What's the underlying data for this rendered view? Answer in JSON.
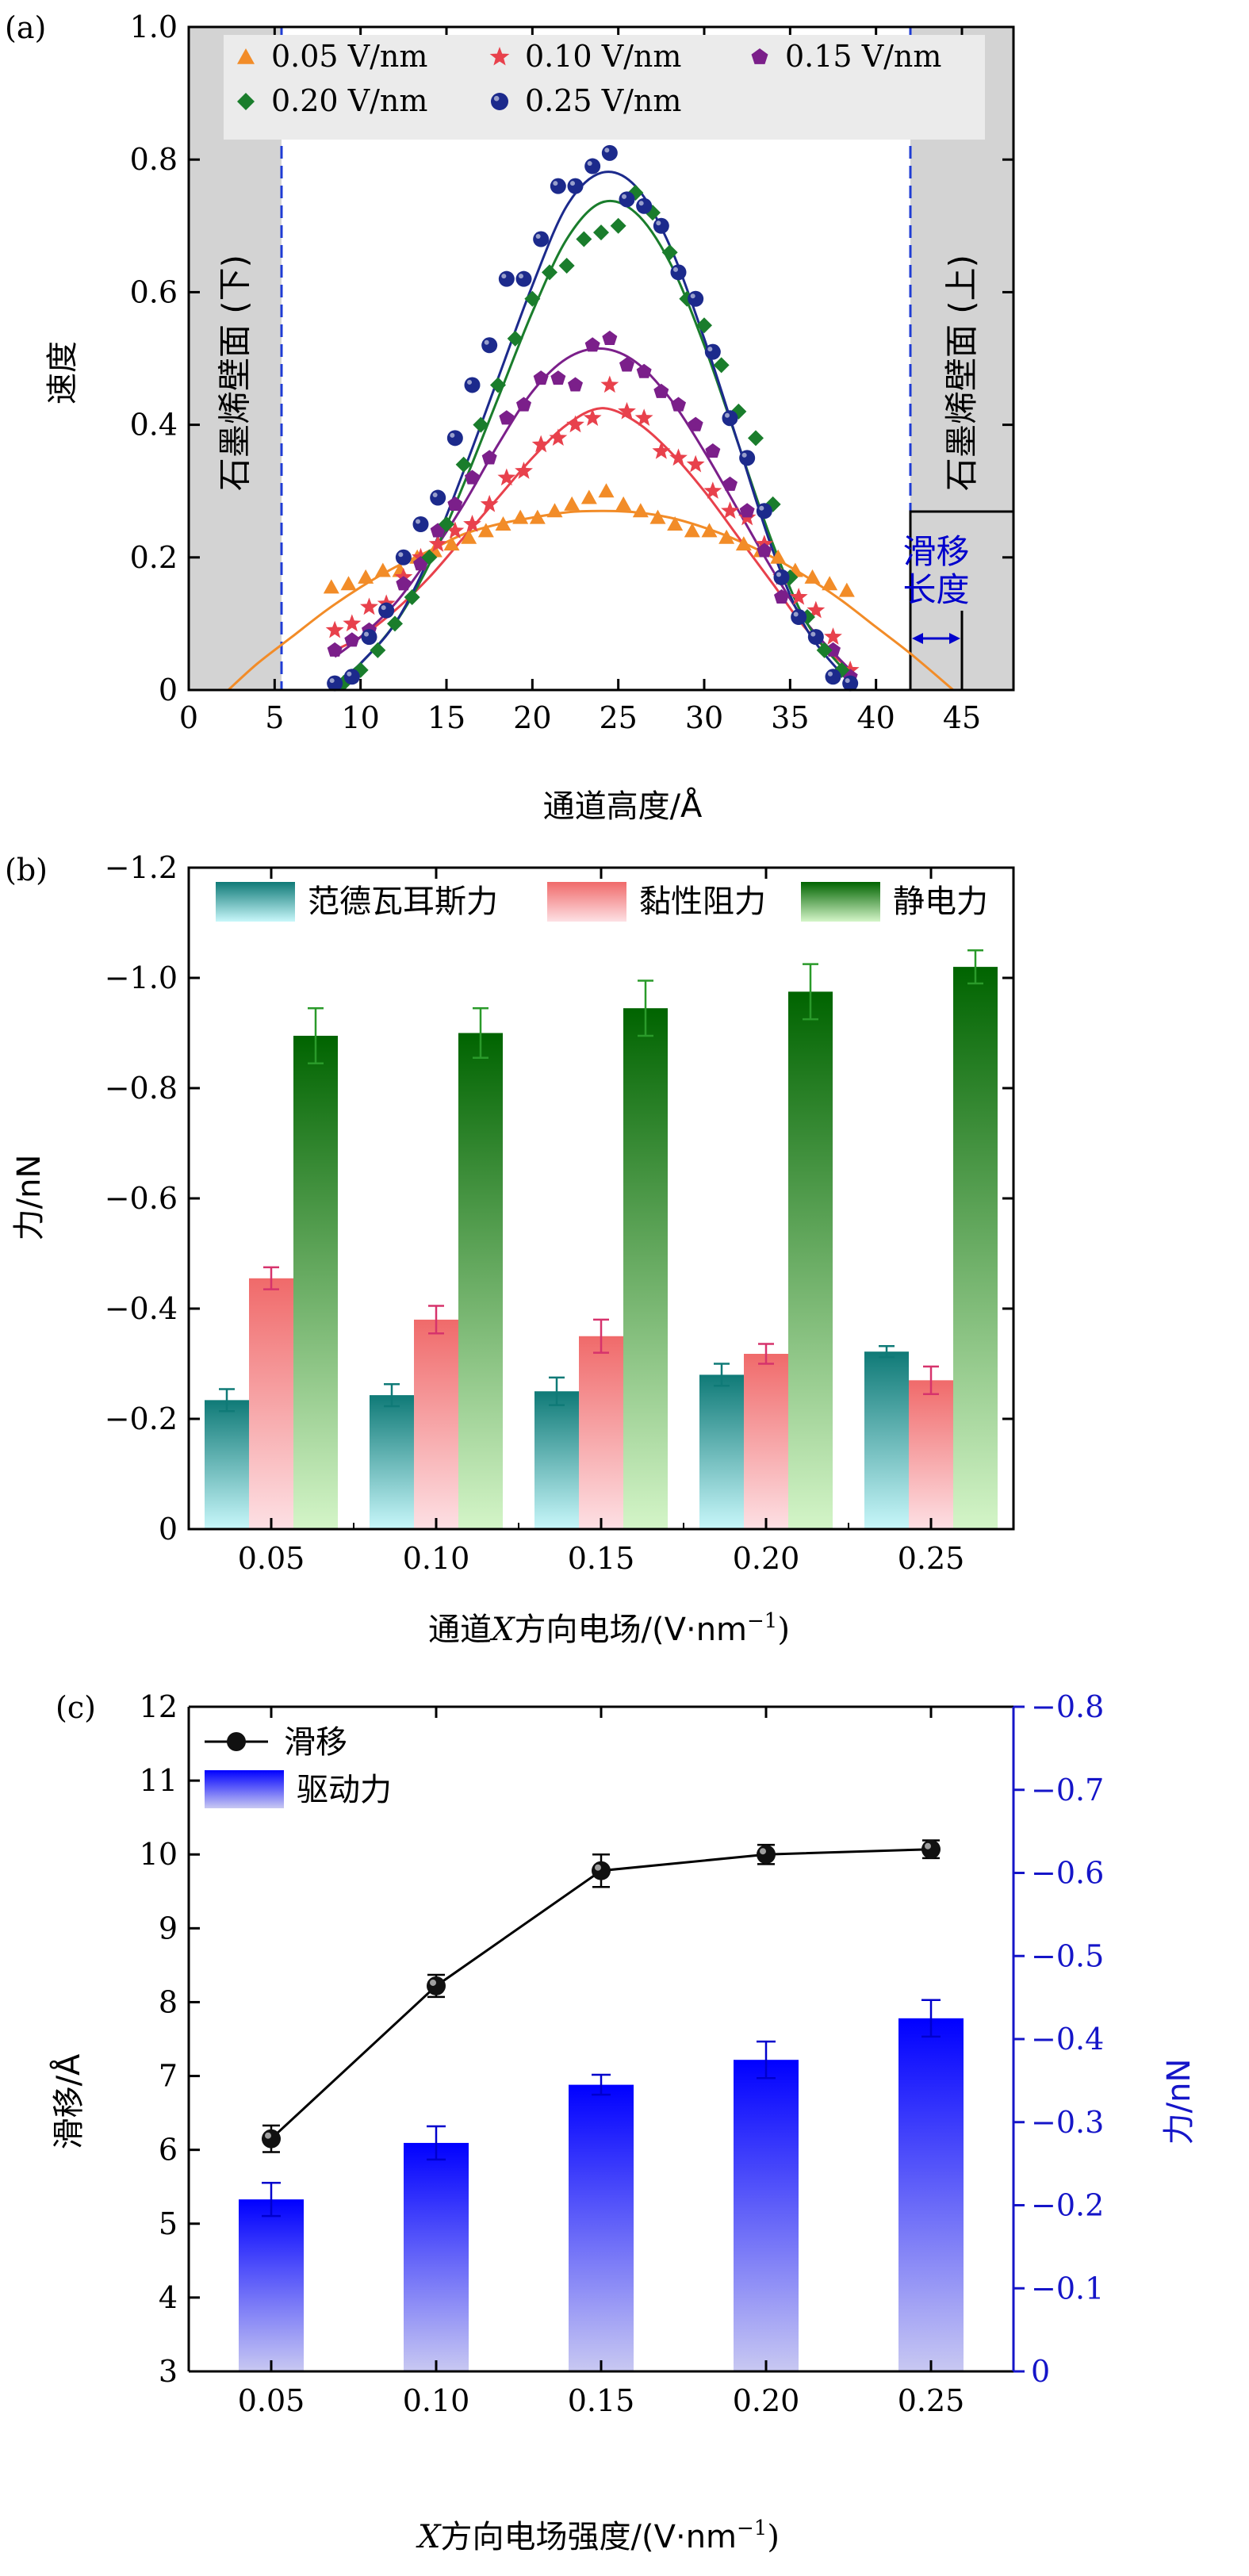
{
  "panels": [
    {
      "id": "a",
      "label": "(a)",
      "chart_data": {
        "type": "scatter",
        "xlabel": "通道高度/Å",
        "ylabel": "速度",
        "xlim": [
          0,
          48
        ],
        "ylim": [
          0,
          1.0
        ],
        "xticks": [
          0,
          5,
          10,
          15,
          20,
          25,
          30,
          35,
          40,
          45
        ],
        "yticks": [
          0,
          0.2,
          0.4,
          0.6,
          0.8,
          1.0
        ],
        "ytick_labels": [
          "0",
          "0.2",
          "0.4",
          "0.6",
          "0.8",
          "1.0"
        ],
        "legend_position": "top",
        "wall_lower": {
          "label": "石墨烯壁面 (下)",
          "x_range": [
            0,
            5.4
          ],
          "color": "#d3d3d3"
        },
        "wall_upper": {
          "label": "石墨烯壁面 (上)",
          "x_range": [
            42,
            48
          ],
          "color": "#d3d3d3"
        },
        "slip_annotation": {
          "label_line1": "滑移",
          "label_line2": "长度",
          "x_range": [
            42,
            45
          ],
          "color": "#0000cc"
        },
        "series": [
          {
            "name": "0.05 V/nm",
            "marker": "triangle",
            "color": "#f28c28",
            "x": [
              8.3,
              9.3,
              10.3,
              11.3,
              12.3,
              13.3,
              14.3,
              15.3,
              16.3,
              17.3,
              18.3,
              19.3,
              20.3,
              21.3,
              22.3,
              23.3,
              24.3,
              25.3,
              26.3,
              27.3,
              28.3,
              29.3,
              30.3,
              31.3,
              32.3,
              33.3,
              34.3,
              35.3,
              36.3,
              37.3,
              38.3
            ],
            "y": [
              0.155,
              0.16,
              0.17,
              0.18,
              0.18,
              0.2,
              0.21,
              0.22,
              0.23,
              0.24,
              0.25,
              0.26,
              0.26,
              0.27,
              0.28,
              0.29,
              0.3,
              0.28,
              0.27,
              0.26,
              0.25,
              0.24,
              0.24,
              0.23,
              0.22,
              0.21,
              0.2,
              0.18,
              0.17,
              0.16,
              0.15
            ],
            "fit_x": [
              2.3,
              4,
              6,
              8,
              10,
              12,
              14,
              16,
              18,
              20,
              22,
              24,
              26,
              28,
              30,
              32,
              34,
              36,
              38,
              40,
              42,
              44.5
            ],
            "fit_y": [
              0.0,
              0.04,
              0.08,
              0.12,
              0.155,
              0.185,
              0.21,
              0.235,
              0.25,
              0.26,
              0.268,
              0.27,
              0.268,
              0.26,
              0.245,
              0.225,
              0.2,
              0.17,
              0.135,
              0.095,
              0.055,
              0.0
            ]
          },
          {
            "name": "0.10 V/nm",
            "marker": "star",
            "color": "#e8414c",
            "x": [
              8.5,
              9.5,
              10.5,
              11.5,
              12.5,
              13.5,
              14.5,
              15.5,
              16.5,
              17.5,
              18.5,
              19.5,
              20.5,
              21.5,
              22.5,
              23.5,
              24.5,
              25.5,
              26.5,
              27.5,
              28.5,
              29.5,
              30.5,
              31.5,
              32.5,
              33.5,
              34.5,
              35.5,
              36.5,
              37.5,
              38.5
            ],
            "y": [
              0.09,
              0.1,
              0.125,
              0.13,
              0.17,
              0.2,
              0.22,
              0.24,
              0.25,
              0.28,
              0.32,
              0.33,
              0.37,
              0.38,
              0.4,
              0.41,
              0.46,
              0.42,
              0.41,
              0.36,
              0.35,
              0.34,
              0.3,
              0.27,
              0.26,
              0.22,
              0.17,
              0.14,
              0.12,
              0.08,
              0.03
            ],
            "fit_x": [
              8.5,
              10,
              12,
              14,
              16,
              18,
              20,
              22,
              24,
              26,
              28,
              30,
              32,
              34,
              36,
              38.5
            ],
            "fit_y": [
              0.06,
              0.08,
              0.12,
              0.17,
              0.23,
              0.29,
              0.35,
              0.4,
              0.425,
              0.405,
              0.36,
              0.3,
              0.23,
              0.16,
              0.09,
              0.03
            ]
          },
          {
            "name": "0.15 V/nm",
            "marker": "pentagon",
            "color": "#7b1f8a",
            "x": [
              8.5,
              9.5,
              10.5,
              11.5,
              12.5,
              13.5,
              14.5,
              15.5,
              16.5,
              17.5,
              18.5,
              19.5,
              20.5,
              21.5,
              22.5,
              23.5,
              24.5,
              25.5,
              26.5,
              27.5,
              28.5,
              29.5,
              30.5,
              31.5,
              32.5,
              33.5,
              34.5,
              35.5,
              36.5,
              37.5,
              38.5
            ],
            "y": [
              0.06,
              0.075,
              0.09,
              0.12,
              0.16,
              0.19,
              0.24,
              0.28,
              0.32,
              0.35,
              0.41,
              0.43,
              0.47,
              0.47,
              0.46,
              0.52,
              0.53,
              0.49,
              0.48,
              0.45,
              0.43,
              0.4,
              0.36,
              0.31,
              0.27,
              0.21,
              0.14,
              0.11,
              0.08,
              0.06,
              0.02
            ],
            "fit_x": [
              8.5,
              10,
              12,
              14,
              16,
              18,
              20,
              22,
              24,
              26,
              28,
              30,
              32,
              34,
              36,
              38.5
            ],
            "fit_y": [
              0.05,
              0.08,
              0.13,
              0.2,
              0.28,
              0.37,
              0.45,
              0.5,
              0.515,
              0.495,
              0.44,
              0.36,
              0.27,
              0.18,
              0.1,
              0.03
            ]
          },
          {
            "name": "0.20 V/nm",
            "marker": "diamond",
            "color": "#1a7d2c",
            "x": [
              9.0,
              10.0,
              11.0,
              12.0,
              13.0,
              14.0,
              15.0,
              16.0,
              17.0,
              18.0,
              19.0,
              20.0,
              21.0,
              22.0,
              23.0,
              24.0,
              25.0,
              26.0,
              27.0,
              28.0,
              29.0,
              30.0,
              31.0,
              32.0,
              33.0,
              34.0,
              35.0,
              36.0,
              37.0,
              38.0
            ],
            "y": [
              0.01,
              0.03,
              0.06,
              0.1,
              0.14,
              0.2,
              0.25,
              0.34,
              0.4,
              0.46,
              0.53,
              0.59,
              0.63,
              0.64,
              0.68,
              0.69,
              0.7,
              0.75,
              0.72,
              0.66,
              0.59,
              0.55,
              0.49,
              0.42,
              0.38,
              0.28,
              0.17,
              0.11,
              0.06,
              0.03
            ],
            "fit_x": [
              9,
              10,
              12,
              14,
              16,
              18,
              20,
              22,
              24,
              26,
              28,
              30,
              32,
              34,
              36,
              38.5
            ],
            "fit_y": [
              0.02,
              0.04,
              0.1,
              0.19,
              0.31,
              0.44,
              0.57,
              0.68,
              0.735,
              0.72,
              0.645,
              0.52,
              0.37,
              0.22,
              0.1,
              0.02
            ]
          },
          {
            "name": "0.25 V/nm",
            "marker": "sphere",
            "color": "#1c2a8c",
            "x": [
              8.5,
              9.5,
              10.5,
              11.5,
              12.5,
              13.5,
              14.5,
              15.5,
              16.5,
              17.5,
              18.5,
              19.5,
              20.5,
              21.5,
              22.5,
              23.5,
              24.5,
              25.5,
              26.5,
              27.5,
              28.5,
              29.5,
              30.5,
              31.5,
              32.5,
              33.5,
              34.5,
              35.5,
              36.5,
              37.5,
              38.5
            ],
            "y": [
              0.01,
              0.02,
              0.08,
              0.12,
              0.2,
              0.25,
              0.29,
              0.38,
              0.46,
              0.52,
              0.62,
              0.62,
              0.68,
              0.76,
              0.76,
              0.79,
              0.81,
              0.74,
              0.73,
              0.7,
              0.63,
              0.59,
              0.51,
              0.41,
              0.35,
              0.27,
              0.17,
              0.11,
              0.08,
              0.02,
              0.01
            ],
            "fit_x": [
              8.5,
              10,
              12,
              14,
              16,
              18,
              20,
              22,
              24,
              26,
              28,
              30,
              32,
              34,
              36,
              38.5
            ],
            "fit_y": [
              0.0,
              0.04,
              0.1,
              0.2,
              0.33,
              0.47,
              0.61,
              0.73,
              0.78,
              0.76,
              0.67,
              0.53,
              0.37,
              0.21,
              0.09,
              0.01
            ]
          }
        ]
      }
    },
    {
      "id": "b",
      "label": "(b)",
      "chart_data": {
        "type": "bar",
        "xlabel_pre": "通道",
        "xlabel_x": "X",
        "xlabel_post": "方向电场/(V·nm",
        "xlabel_sup": "−1",
        "xlabel_close": ")",
        "ylabel": "力/nN",
        "categories": [
          "0.05",
          "0.10",
          "0.15",
          "0.20",
          "0.25"
        ],
        "ylim": [
          0,
          -1.2
        ],
        "yticks": [
          0,
          -0.2,
          -0.4,
          -0.6,
          -0.8,
          -1.0,
          -1.2
        ],
        "ytick_labels": [
          "0",
          "−0.2",
          "−0.4",
          "−0.6",
          "−0.8",
          "−1.0",
          "−1.2"
        ],
        "legend_position": "top",
        "series": [
          {
            "name": "范德瓦耳斯力",
            "color_top": "#0f7a77",
            "color_bottom": "#c8f7fa",
            "err_color": "#0f7a77",
            "values": [
              -0.234,
              -0.243,
              -0.25,
              -0.28,
              -0.322
            ],
            "errors": [
              0.02,
              0.02,
              0.025,
              0.02,
              0.01
            ]
          },
          {
            "name": "黏性阻力",
            "color_top": "#f06a6a",
            "color_bottom": "#fde0e4",
            "err_color": "#d6336c",
            "values": [
              -0.455,
              -0.38,
              -0.35,
              -0.318,
              -0.27
            ],
            "errors": [
              0.02,
              0.025,
              0.03,
              0.018,
              0.025
            ]
          },
          {
            "name": "静电力",
            "color_top": "#006400",
            "color_bottom": "#d4f5c8",
            "err_color": "#2a9a2a",
            "values": [
              -0.895,
              -0.9,
              -0.945,
              -0.975,
              -1.02
            ],
            "errors": [
              0.05,
              0.045,
              0.05,
              0.05,
              0.03
            ]
          }
        ]
      }
    },
    {
      "id": "c",
      "label": "(c)",
      "chart_data": {
        "type": "bar",
        "xlabel_x": "X",
        "xlabel_post": "方向电场强度/(V·nm",
        "xlabel_sup": "−1",
        "xlabel_close": ")",
        "ylabel_left": "滑移/Å",
        "ylabel_right": "力/nN",
        "categories": [
          "0.05",
          "0.10",
          "0.15",
          "0.20",
          "0.25"
        ],
        "ylim_left": [
          3,
          12
        ],
        "yticks_left": [
          3,
          4,
          5,
          6,
          7,
          8,
          9,
          10,
          11,
          12
        ],
        "ylim_right": [
          0,
          -0.8
        ],
        "yticks_right": [
          0,
          -0.1,
          -0.2,
          -0.3,
          -0.4,
          -0.5,
          -0.6,
          -0.7,
          -0.8
        ],
        "ytick_right_labels": [
          "0",
          "−0.1",
          "−0.2",
          "−0.3",
          "−0.4",
          "−0.5",
          "−0.6",
          "−0.7",
          "−0.8"
        ],
        "right_axis_color": "#1515c8",
        "legend_position": "top-left",
        "series": [
          {
            "name": "滑移",
            "kind": "line",
            "axis": "left",
            "color": "#000000",
            "values": [
              6.15,
              8.22,
              9.78,
              10.0,
              10.07
            ],
            "errors": [
              0.18,
              0.15,
              0.22,
              0.13,
              0.12
            ]
          },
          {
            "name": "驱动力",
            "kind": "bar",
            "axis": "right",
            "color_top": "#0000ff",
            "color_bottom": "#c8c8f2",
            "values": [
              -0.207,
              -0.275,
              -0.345,
              -0.375,
              -0.425
            ],
            "errors": [
              0.02,
              0.02,
              0.012,
              0.022,
              0.022
            ]
          }
        ]
      }
    }
  ]
}
